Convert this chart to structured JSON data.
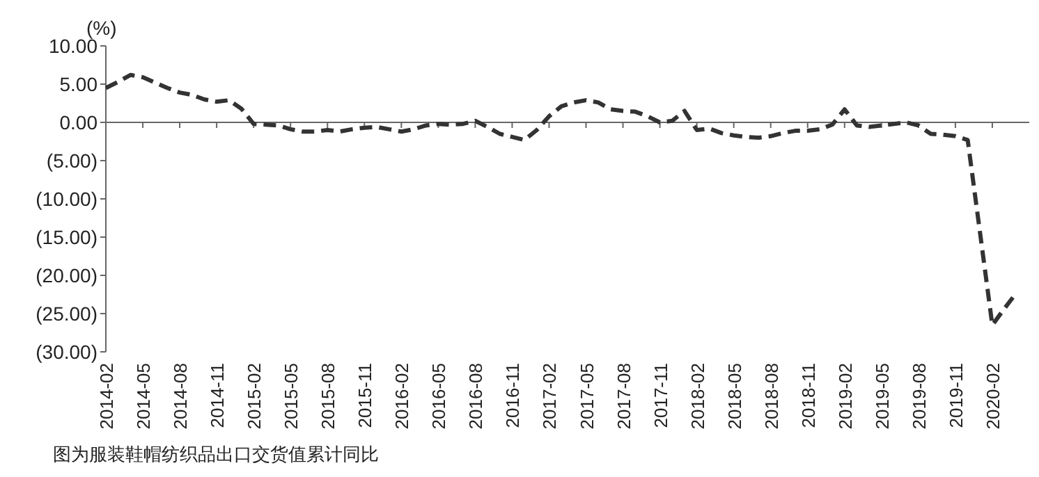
{
  "chart_data": {
    "type": "line",
    "ylabel": "(%)",
    "annotations": [
      "图为服装鞋帽纺织品出口交货值累计同比"
    ],
    "x": [
      "2014-02",
      "2014-03",
      "2014-04",
      "2014-05",
      "2014-06",
      "2014-07",
      "2014-08",
      "2014-09",
      "2014-10",
      "2014-11",
      "2014-12",
      "2015-01",
      "2015-02",
      "2015-03",
      "2015-04",
      "2015-05",
      "2015-06",
      "2015-07",
      "2015-08",
      "2015-09",
      "2015-10",
      "2015-11",
      "2015-12",
      "2016-01",
      "2016-02",
      "2016-03",
      "2016-04",
      "2016-05",
      "2016-06",
      "2016-07",
      "2016-08",
      "2016-09",
      "2016-10",
      "2016-11",
      "2016-12",
      "2017-01",
      "2017-02",
      "2017-03",
      "2017-04",
      "2017-05",
      "2017-06",
      "2017-07",
      "2017-08",
      "2017-09",
      "2017-10",
      "2017-11",
      "2017-12",
      "2018-01",
      "2018-02",
      "2018-03",
      "2018-04",
      "2018-05",
      "2018-06",
      "2018-07",
      "2018-08",
      "2018-09",
      "2018-10",
      "2018-11",
      "2018-12",
      "2019-01",
      "2019-02",
      "2019-03",
      "2019-04",
      "2019-05",
      "2019-06",
      "2019-07",
      "2019-08",
      "2019-09",
      "2019-10",
      "2019-11",
      "2019-12",
      "2020-02",
      "2020-03",
      "2020-04"
    ],
    "series": [
      {
        "color": "#333333",
        "values": [
          4.5,
          5.3,
          6.2,
          5.9,
          5.2,
          4.5,
          3.9,
          3.6,
          3.0,
          2.7,
          2.9,
          1.8,
          -0.2,
          -0.3,
          -0.4,
          -0.9,
          -1.2,
          -1.2,
          -1.0,
          -1.2,
          -0.9,
          -0.7,
          -0.6,
          -0.9,
          -1.2,
          -0.9,
          -0.4,
          -0.2,
          -0.3,
          -0.2,
          0.2,
          -0.6,
          -1.5,
          -1.9,
          -2.3,
          -1.0,
          0.8,
          2.1,
          2.6,
          2.9,
          2.6,
          1.7,
          1.5,
          1.4,
          0.8,
          0.0,
          0.2,
          1.5,
          -1.0,
          -0.8,
          -1.4,
          -1.7,
          -1.9,
          -2.0,
          -1.8,
          -1.4,
          -1.1,
          -1.1,
          -0.9,
          -0.3,
          1.7,
          -0.4,
          -0.6,
          -0.4,
          -0.2,
          0.0,
          -0.4,
          -1.5,
          -1.6,
          -1.8,
          -2.3,
          -26.5,
          -24.3,
          -22.2
        ]
      }
    ],
    "xlim": [
      "2014-02",
      "2020-05"
    ],
    "xticks": [
      "2014-02",
      "2014-05",
      "2014-08",
      "2014-11",
      "2015-02",
      "2015-05",
      "2015-08",
      "2015-11",
      "2016-02",
      "2016-05",
      "2016-08",
      "2016-11",
      "2017-02",
      "2017-05",
      "2017-08",
      "2017-11",
      "2018-02",
      "2018-05",
      "2018-08",
      "2018-11",
      "2019-02",
      "2019-05",
      "2019-08",
      "2019-11",
      "2020-02"
    ],
    "ylim": [
      -30,
      10
    ],
    "yticks": [
      {
        "value": 10,
        "label": "10.00"
      },
      {
        "value": 5,
        "label": "5.00"
      },
      {
        "value": 0,
        "label": "0.00"
      },
      {
        "value": -5,
        "label": "(5.00)"
      },
      {
        "value": -10,
        "label": "(10.00)"
      },
      {
        "value": -15,
        "label": "(15.00)"
      },
      {
        "value": -20,
        "label": "(20.00)"
      },
      {
        "value": -25,
        "label": "(25.00)"
      },
      {
        "value": -30,
        "label": "(30.00)"
      }
    ],
    "marker": "none",
    "line_style": "dashed"
  }
}
